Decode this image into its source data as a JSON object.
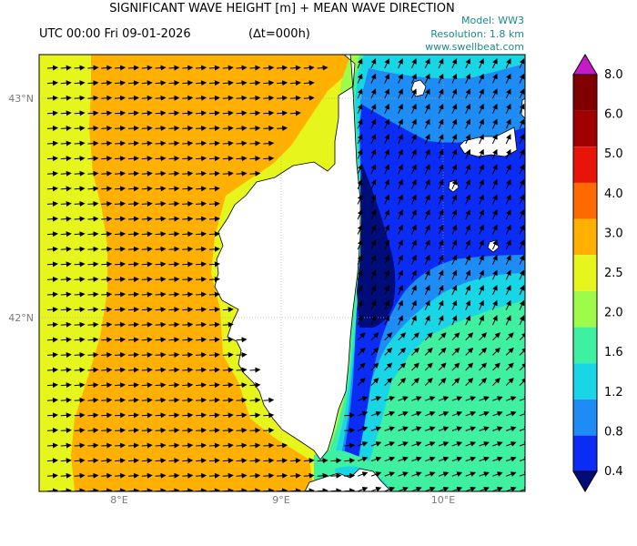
{
  "header": {
    "title": "SIGNIFICANT WAVE HEIGHT [m] + MEAN WAVE DIRECTION",
    "time": "UTC 00:00 Fri 09-01-2026",
    "delta": "(∆t=000h)",
    "model": "Model: WW3",
    "resolution": "Resolution: 1.8 km",
    "website": "www.swellbeat.com"
  },
  "map": {
    "region": "Corsica",
    "lon_range": [
      7.5,
      10.5
    ],
    "lat_range": [
      41.1,
      43.2
    ],
    "lat_ticks": [
      "43°N",
      "42°N"
    ],
    "lon_ticks": [
      "8°E",
      "9°E",
      "10°E"
    ],
    "dominant_wave_direction": "from west-southwest toward east-northeast"
  },
  "colorbar": {
    "labels": [
      "0.4",
      "0.8",
      "1.2",
      "1.6",
      "2.0",
      "2.5",
      "3.0",
      "4.0",
      "5.0",
      "6.0",
      "8.0"
    ],
    "colors": [
      "#000c7a",
      "#0a2cf5",
      "#1e8cf5",
      "#19d6e6",
      "#3ef0a0",
      "#9efb4a",
      "#e6f51c",
      "#ffb000",
      "#ff6a00",
      "#e81408",
      "#a00000",
      "#800000",
      "#c819c8"
    ],
    "unit": "m"
  }
}
